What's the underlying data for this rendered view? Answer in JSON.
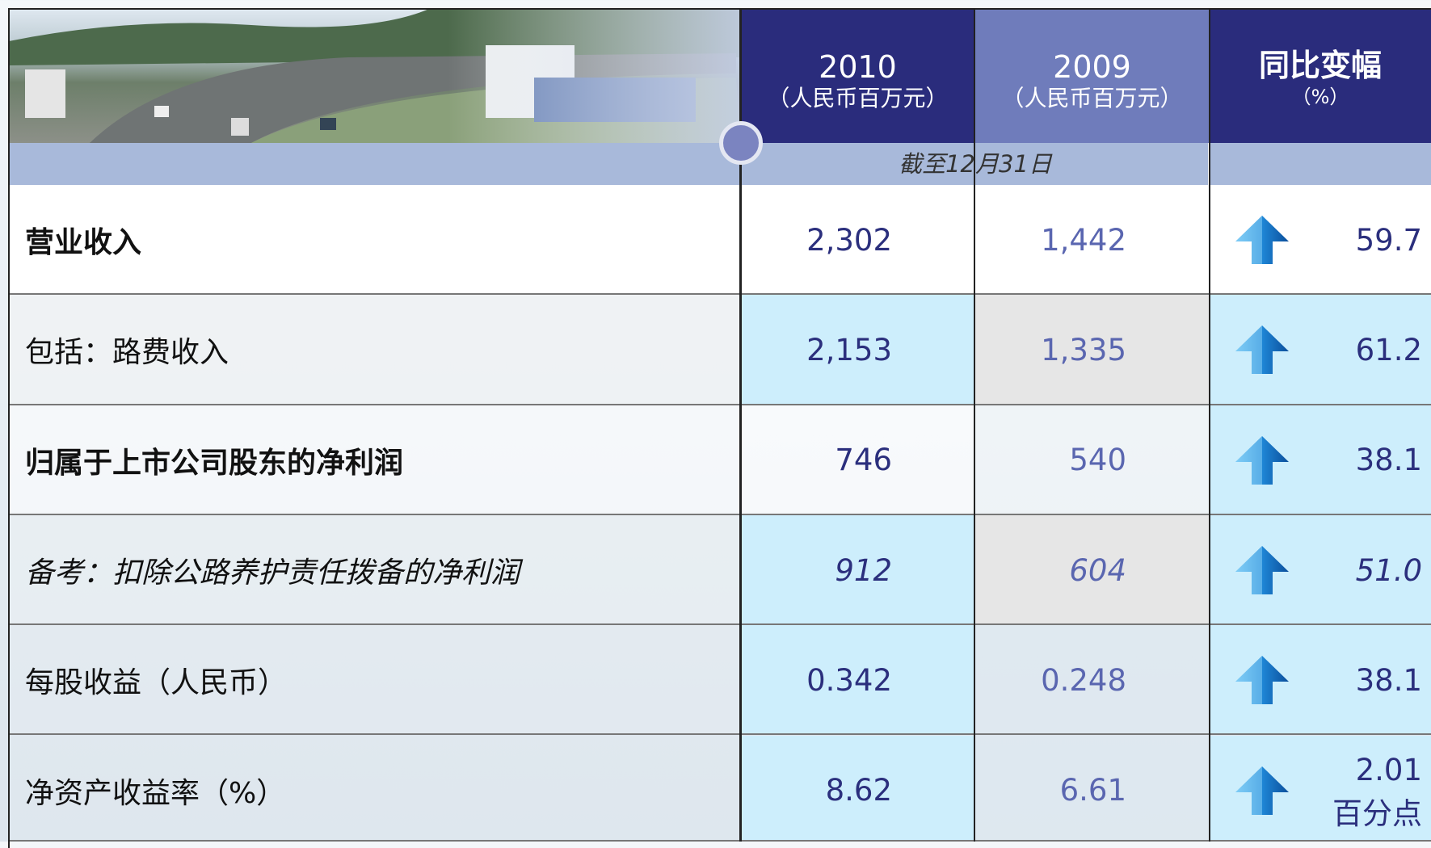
{
  "header": {
    "columns": [
      {
        "year": "2010",
        "unit": "（人民币百万元）"
      },
      {
        "year": "2009",
        "unit": "（人民币百万元）"
      }
    ],
    "change": {
      "title": "同比变幅",
      "unit": "（%）"
    },
    "period": "截至12月31日"
  },
  "table": {
    "rows": [
      {
        "label": "营业收入",
        "v2010": "2,302",
        "v2009": "1,442",
        "change": "59.7",
        "style": "bold"
      },
      {
        "label": "包括：路费收入",
        "v2010": "2,153",
        "v2009": "1,335",
        "change": "61.2",
        "style": "normal"
      },
      {
        "label": "归属于上市公司股东的净利润",
        "v2010": "746",
        "v2009": "540",
        "change": "38.1",
        "style": "bold"
      },
      {
        "label": "备考：扣除公路养护责任拨备的净利润",
        "v2010": "912",
        "v2009": "604",
        "change": "51.0",
        "style": "italic"
      },
      {
        "label": "每股收益（人民币）",
        "v2010": "0.342",
        "v2009": "0.248",
        "change": "38.1",
        "style": "normal"
      },
      {
        "label": "净资产收益率（%）",
        "v2010": "8.62",
        "v2009": "6.61",
        "change": "2.01",
        "change_unit": "百分点",
        "style": "normal"
      }
    ]
  }
}
